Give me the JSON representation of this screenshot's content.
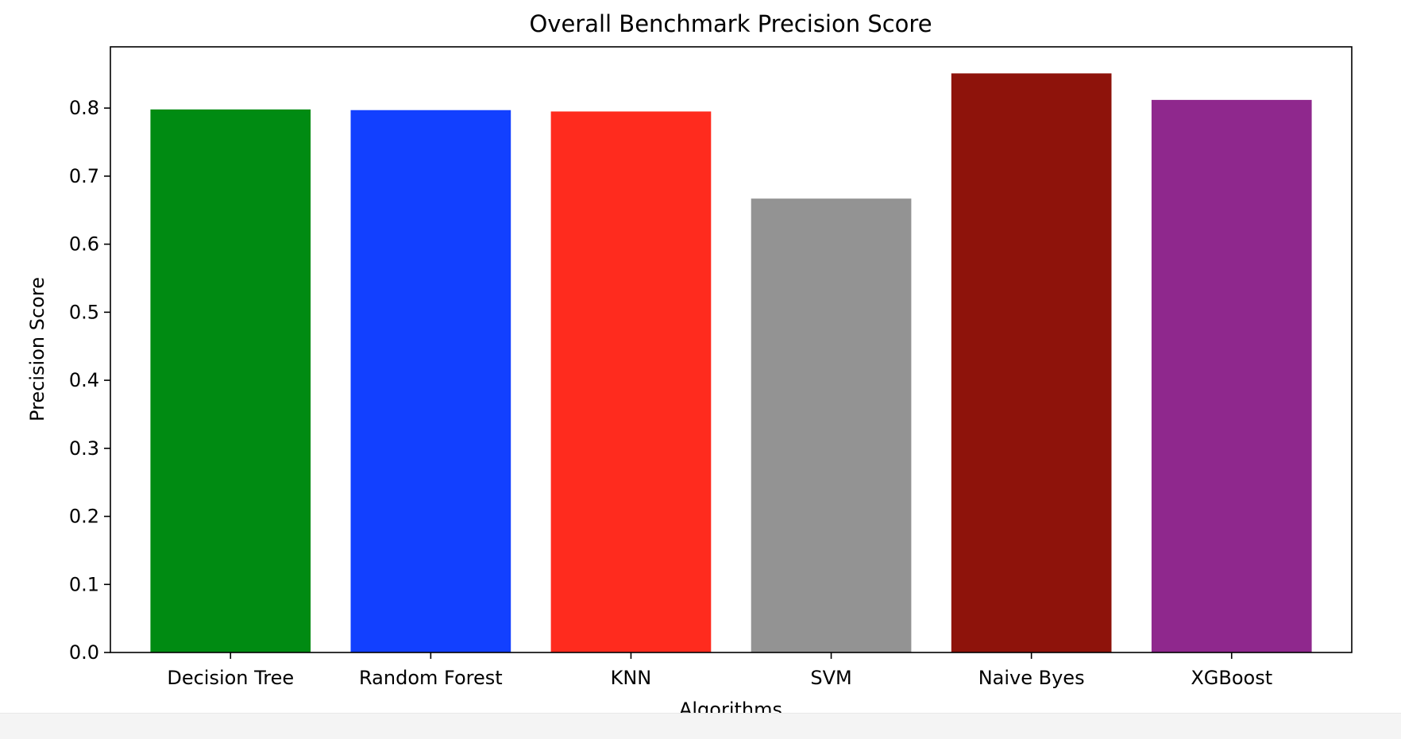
{
  "chart_data": {
    "type": "bar",
    "title": "Overall Benchmark Precision Score",
    "xlabel": "Algorithms",
    "ylabel": "Precision Score",
    "categories": [
      "Decision Tree",
      "Random Forest",
      "KNN",
      "SVM",
      "Naive Byes",
      "XGBoost"
    ],
    "values": [
      0.798,
      0.797,
      0.795,
      0.667,
      0.851,
      0.812
    ],
    "colors": [
      "#008b12",
      "#1240ff",
      "#ff2b1e",
      "#939393",
      "#8e130b",
      "#8f288d"
    ],
    "ylim": [
      0,
      0.89
    ],
    "yticks": [
      0.0,
      0.1,
      0.2,
      0.3,
      0.4,
      0.5,
      0.6,
      0.7,
      0.8
    ],
    "ytick_labels": [
      "0.0",
      "0.1",
      "0.2",
      "0.3",
      "0.4",
      "0.5",
      "0.6",
      "0.7",
      "0.8"
    ],
    "grid": false,
    "legend": "none"
  }
}
